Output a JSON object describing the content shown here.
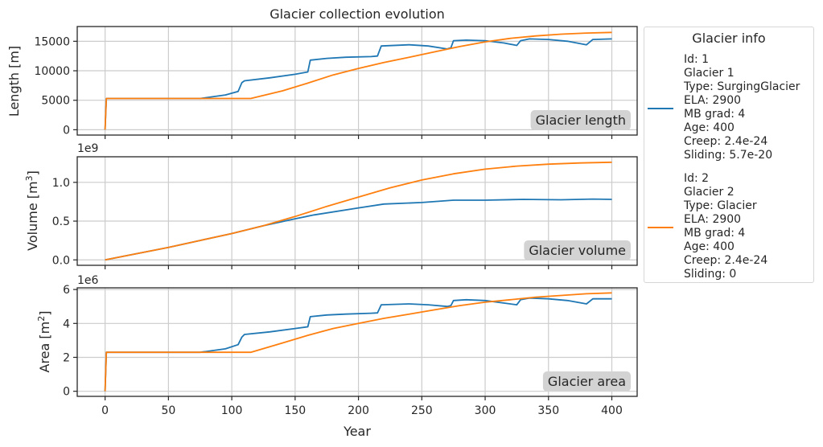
{
  "figure_title": "Glacier collection evolution",
  "legend": {
    "title": "Glacier info",
    "entries": [
      {
        "color": "#1f77b4",
        "lines": [
          "Id: 1",
          "Glacier 1",
          "Type: SurgingGlacier",
          "ELA: 2900",
          "MB grad: 4",
          "Age: 400",
          "Creep: 2.4e-24",
          "Sliding: 5.7e-20"
        ]
      },
      {
        "color": "#ff7f0e",
        "lines": [
          "Id: 2",
          "Glacier 2",
          "Type: Glacier",
          "ELA: 2900",
          "MB grad: 4",
          "Age: 400",
          "Creep: 2.4e-24",
          "Sliding: 0"
        ]
      }
    ]
  },
  "chart_data": [
    {
      "type": "line",
      "title": "",
      "ylabel": "Length [m]",
      "xlabel": "",
      "xlim": [
        -22,
        420
      ],
      "ylim": [
        -900,
        17500
      ],
      "xticks": [
        0,
        50,
        100,
        150,
        200,
        250,
        300,
        350,
        400
      ],
      "yticks": [
        0,
        5000,
        10000,
        15000
      ],
      "yticklabels": [
        "0",
        "5000",
        "10000",
        "15000"
      ],
      "offset_label": "",
      "annotation": "Glacier length",
      "series": [
        {
          "name": "Glacier 1",
          "color": "#1f77b4",
          "x": [
            0,
            1,
            75,
            95,
            105,
            108,
            110,
            130,
            150,
            160,
            162,
            175,
            190,
            210,
            215,
            218,
            240,
            255,
            270,
            273,
            275,
            285,
            300,
            315,
            325,
            328,
            335,
            350,
            365,
            380,
            385,
            400
          ],
          "y": [
            0,
            5300,
            5300,
            5900,
            6500,
            8000,
            8300,
            8800,
            9400,
            9800,
            11800,
            12100,
            12300,
            12400,
            12500,
            14200,
            14400,
            14200,
            13700,
            13900,
            15100,
            15200,
            15100,
            14700,
            14300,
            15100,
            15400,
            15300,
            15000,
            14400,
            15300,
            15400
          ]
        },
        {
          "name": "Glacier 2",
          "color": "#ff7f0e",
          "x": [
            0,
            1,
            115,
            140,
            160,
            180,
            200,
            220,
            240,
            260,
            280,
            300,
            320,
            340,
            360,
            380,
            400
          ],
          "y": [
            0,
            5300,
            5300,
            6600,
            7900,
            9300,
            10400,
            11400,
            12300,
            13200,
            14100,
            14900,
            15500,
            15900,
            16200,
            16400,
            16500
          ]
        }
      ]
    },
    {
      "type": "line",
      "title": "",
      "ylabel": "Volume [m³]",
      "xlabel": "",
      "xlim": [
        -22,
        420
      ],
      "ylim": [
        -0.07,
        1.33
      ],
      "xticks": [
        0,
        50,
        100,
        150,
        200,
        250,
        300,
        350,
        400
      ],
      "yticks": [
        0,
        0.5,
        1.0
      ],
      "yticklabels": [
        "0.0",
        "0.5",
        "1.0"
      ],
      "offset_label": "1e9",
      "annotation": "Glacier volume",
      "series": [
        {
          "name": "Glacier 1",
          "color": "#1f77b4",
          "x": [
            0,
            25,
            50,
            75,
            100,
            125,
            150,
            165,
            200,
            220,
            250,
            275,
            300,
            330,
            360,
            385,
            400
          ],
          "y": [
            0,
            0.08,
            0.16,
            0.25,
            0.34,
            0.44,
            0.53,
            0.58,
            0.67,
            0.72,
            0.74,
            0.77,
            0.77,
            0.78,
            0.775,
            0.785,
            0.78
          ]
        },
        {
          "name": "Glacier 2",
          "color": "#ff7f0e",
          "x": [
            0,
            25,
            50,
            75,
            100,
            125,
            150,
            175,
            200,
            225,
            250,
            275,
            300,
            325,
            350,
            375,
            400
          ],
          "y": [
            0,
            0.08,
            0.16,
            0.25,
            0.34,
            0.44,
            0.56,
            0.69,
            0.81,
            0.93,
            1.03,
            1.11,
            1.17,
            1.21,
            1.235,
            1.25,
            1.26
          ]
        }
      ]
    },
    {
      "type": "line",
      "title": "",
      "ylabel": "Area [m²]",
      "xlabel": "Year",
      "xlim": [
        -22,
        420
      ],
      "ylim": [
        -0.3,
        6.1
      ],
      "xticks": [
        0,
        50,
        100,
        150,
        200,
        250,
        300,
        350,
        400
      ],
      "xticklabels": [
        "0",
        "50",
        "100",
        "150",
        "200",
        "250",
        "300",
        "350",
        "400"
      ],
      "yticks": [
        0,
        2,
        4,
        6
      ],
      "yticklabels": [
        "0",
        "2",
        "4",
        "6"
      ],
      "offset_label": "1e6",
      "annotation": "Glacier area",
      "series": [
        {
          "name": "Glacier 1",
          "color": "#1f77b4",
          "x": [
            0,
            1,
            75,
            95,
            105,
            108,
            110,
            130,
            150,
            160,
            162,
            175,
            190,
            210,
            215,
            218,
            240,
            255,
            270,
            273,
            275,
            285,
            300,
            315,
            325,
            328,
            335,
            350,
            365,
            380,
            385,
            400
          ],
          "y": [
            0,
            2.3,
            2.3,
            2.5,
            2.75,
            3.2,
            3.35,
            3.5,
            3.7,
            3.8,
            4.4,
            4.5,
            4.55,
            4.6,
            4.62,
            5.1,
            5.15,
            5.1,
            5.0,
            5.05,
            5.35,
            5.4,
            5.35,
            5.2,
            5.1,
            5.4,
            5.5,
            5.45,
            5.35,
            5.15,
            5.45,
            5.45
          ]
        },
        {
          "name": "Glacier 2",
          "color": "#ff7f0e",
          "x": [
            0,
            1,
            115,
            140,
            160,
            180,
            200,
            220,
            240,
            260,
            280,
            300,
            320,
            340,
            360,
            380,
            400
          ],
          "y": [
            0,
            2.3,
            2.3,
            2.85,
            3.3,
            3.7,
            4.0,
            4.3,
            4.55,
            4.8,
            5.05,
            5.25,
            5.4,
            5.55,
            5.65,
            5.75,
            5.8
          ]
        }
      ]
    }
  ]
}
